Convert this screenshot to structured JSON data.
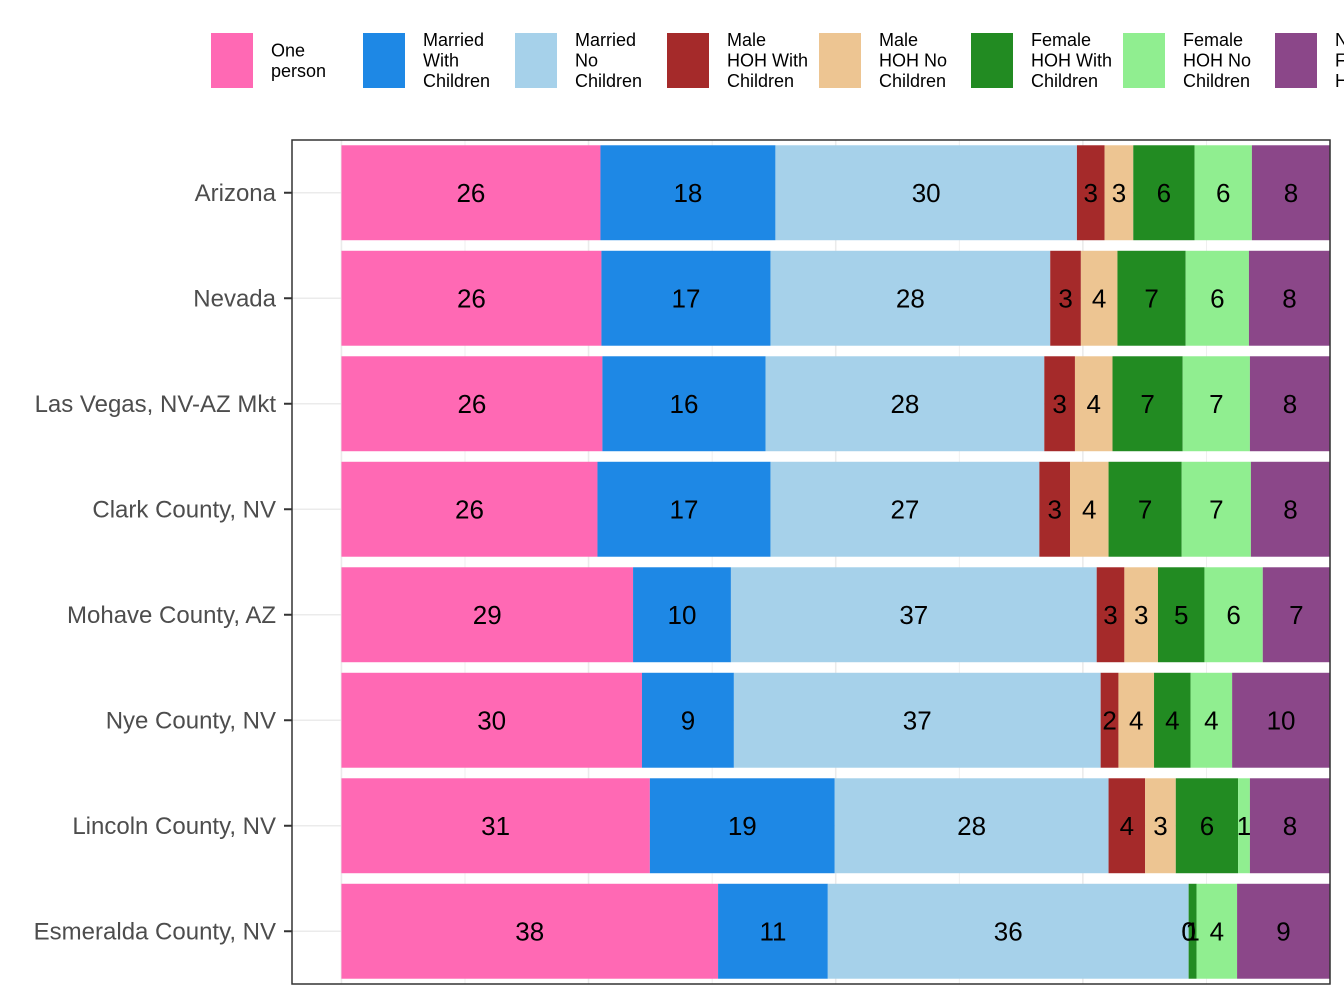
{
  "chart_data": {
    "type": "bar",
    "orientation": "horizontal",
    "stacked": true,
    "normalized_percent": true,
    "categories": [
      "Arizona",
      "Nevada",
      "Las Vegas, NV-AZ Mkt",
      "Clark County, NV",
      "Mohave County, AZ",
      "Nye County, NV",
      "Lincoln County, NV",
      "Esmeralda County, NV"
    ],
    "series": [
      {
        "name": "One person",
        "legend_lines": [
          "One",
          "person"
        ],
        "color": "#FF69B4",
        "values": [
          26.2,
          26.3,
          26.4,
          25.9,
          29.5,
          30.4,
          31.2,
          38.1
        ],
        "labels": [
          "26",
          "26",
          "26",
          "26",
          "29",
          "30",
          "31",
          "38"
        ]
      },
      {
        "name": "Married With Children",
        "legend_lines": [
          "Married",
          "With",
          "Children"
        ],
        "color": "#1E88E5",
        "values": [
          17.7,
          17.1,
          16.5,
          17.5,
          9.9,
          9.3,
          18.7,
          11.1
        ],
        "labels": [
          "18",
          "17",
          "16",
          "17",
          "10",
          "9",
          "19",
          "11"
        ]
      },
      {
        "name": "Married No Children",
        "legend_lines": [
          "Married",
          "No",
          "Children"
        ],
        "color": "#A6D1EA",
        "values": [
          30.5,
          28.3,
          28.2,
          27.2,
          37.0,
          37.1,
          27.7,
          36.5
        ],
        "labels": [
          "30",
          "28",
          "28",
          "27",
          "37",
          "37",
          "28",
          "36"
        ]
      },
      {
        "name": "Male HOH With Children",
        "legend_lines": [
          "Male",
          "HOH With",
          "Children"
        ],
        "color": "#A52A2A",
        "values": [
          2.8,
          3.1,
          3.1,
          3.1,
          2.8,
          1.8,
          3.7,
          0.0
        ],
        "labels": [
          "3",
          "3",
          "3",
          "3",
          "3",
          "2",
          "4",
          "0"
        ]
      },
      {
        "name": "Male HOH No Children",
        "legend_lines": [
          "Male",
          "HOH No",
          "Children"
        ],
        "color": "#EDC592",
        "values": [
          2.9,
          3.7,
          3.8,
          3.9,
          3.4,
          3.6,
          3.1,
          0.0
        ],
        "labels": [
          "3",
          "4",
          "4",
          "4",
          "3",
          "4",
          "3",
          "0"
        ]
      },
      {
        "name": "Female HOH With Children",
        "legend_lines": [
          "Female",
          "HOH With",
          "Children"
        ],
        "color": "#228B22",
        "values": [
          6.2,
          6.9,
          7.1,
          7.4,
          4.7,
          3.7,
          6.3,
          0.8
        ],
        "labels": [
          "6",
          "7",
          "7",
          "7",
          "5",
          "4",
          "6",
          "1"
        ]
      },
      {
        "name": "Female HOH No Children",
        "legend_lines": [
          "Female",
          "HOH No",
          "Children"
        ],
        "color": "#90EE90",
        "values": [
          5.8,
          6.4,
          6.8,
          7.0,
          5.9,
          4.2,
          1.2,
          4.1
        ],
        "labels": [
          "6",
          "6",
          "7",
          "7",
          "6",
          "4",
          "1",
          "4"
        ]
      },
      {
        "name": "Non Family Households",
        "legend_lines": [
          "Non",
          "Family",
          "Households"
        ],
        "color": "#8B4789",
        "values": [
          7.9,
          8.2,
          8.1,
          8.0,
          6.8,
          9.9,
          8.1,
          9.4
        ],
        "labels": [
          "8",
          "8",
          "8",
          "8",
          "7",
          "10",
          "8",
          "9"
        ]
      }
    ],
    "title": "",
    "xlabel": "",
    "ylabel": "",
    "xlim": [
      -5,
      100
    ],
    "grid": true,
    "legend_position": "top"
  }
}
